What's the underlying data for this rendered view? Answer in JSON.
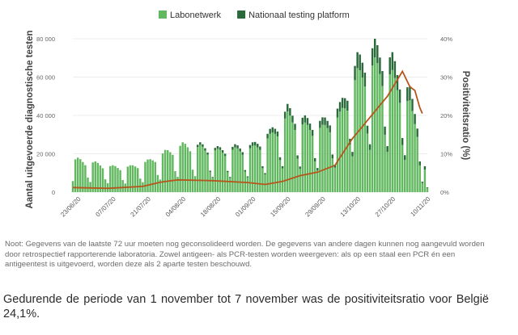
{
  "chart_data": {
    "type": "bar",
    "legend": [
      {
        "name": "Labonetwerk",
        "color": "#62b860"
      },
      {
        "name": "Nationaal testing platform",
        "color": "#2a6a3a"
      }
    ],
    "line_series": {
      "name": "Positiviteitsratio",
      "color": "#b5561c"
    },
    "ylabel": "Aantal uitgevoerde diagnostische testen",
    "y2label": "Positiviteitsratio (%)",
    "ylim": [
      0,
      80000
    ],
    "y_ticks": [
      0,
      20000,
      40000,
      60000,
      80000
    ],
    "y_tick_labels": [
      "0",
      "20 000",
      "40 000",
      "60 000",
      "80 000"
    ],
    "y2lim": [
      0,
      40
    ],
    "y2_ticks": [
      0,
      10,
      20,
      30,
      40
    ],
    "y2_tick_labels": [
      "0%",
      "10%",
      "20%",
      "30%",
      "40%"
    ],
    "x_tick_labels": [
      "23/06/20",
      "07/07/20",
      "21/07/20",
      "04/08/20",
      "18/08/20",
      "01/09/20",
      "15/09/20",
      "29/09/20",
      "13/10/20",
      "27/10/20",
      "10/11/20"
    ],
    "x_start": "2020-06-21",
    "x_end": "2020-11-10",
    "weekly_peaks": [
      {
        "date": "2020-06-23",
        "total": 18000
      },
      {
        "date": "2020-06-30",
        "total": 16000
      },
      {
        "date": "2020-07-07",
        "total": 14000
      },
      {
        "date": "2020-07-14",
        "total": 14000
      },
      {
        "date": "2020-07-21",
        "total": 17000
      },
      {
        "date": "2020-07-28",
        "total": 22000
      },
      {
        "date": "2020-08-04",
        "total": 26000
      },
      {
        "date": "2020-08-11",
        "total": 26000
      },
      {
        "date": "2020-08-18",
        "total": 24000
      },
      {
        "date": "2020-08-25",
        "total": 25000
      },
      {
        "date": "2020-09-01",
        "total": 26000
      },
      {
        "date": "2020-09-08",
        "total": 33000
      },
      {
        "date": "2020-09-15",
        "total": 46000
      },
      {
        "date": "2020-09-22",
        "total": 40000
      },
      {
        "date": "2020-09-29",
        "total": 39000
      },
      {
        "date": "2020-10-06",
        "total": 47000
      },
      {
        "date": "2020-10-13",
        "total": 73000
      },
      {
        "date": "2020-10-20",
        "total": 80000
      },
      {
        "date": "2020-10-27",
        "total": 73000
      },
      {
        "date": "2020-11-03",
        "total": 55000
      },
      {
        "date": "2020-11-10",
        "total": 21000
      }
    ],
    "positivity": [
      {
        "date": "2020-06-21",
        "value": 1.2
      },
      {
        "date": "2020-07-05",
        "value": 1.0
      },
      {
        "date": "2020-07-19",
        "value": 1.5
      },
      {
        "date": "2020-07-26",
        "value": 2.6
      },
      {
        "date": "2020-08-02",
        "value": 3.2
      },
      {
        "date": "2020-08-16",
        "value": 3.0
      },
      {
        "date": "2020-08-30",
        "value": 2.5
      },
      {
        "date": "2020-09-06",
        "value": 2.0
      },
      {
        "date": "2020-09-13",
        "value": 2.8
      },
      {
        "date": "2020-09-20",
        "value": 4.3
      },
      {
        "date": "2020-09-27",
        "value": 5.2
      },
      {
        "date": "2020-10-04",
        "value": 7.0
      },
      {
        "date": "2020-10-11",
        "value": 14.0
      },
      {
        "date": "2020-10-18",
        "value": 19.5
      },
      {
        "date": "2020-10-25",
        "value": 25.0
      },
      {
        "date": "2020-10-31",
        "value": 31.5
      },
      {
        "date": "2020-11-03",
        "value": 27.5
      },
      {
        "date": "2020-11-05",
        "value": 26.5
      },
      {
        "date": "2020-11-07",
        "value": 22.0
      },
      {
        "date": "2020-11-08",
        "value": 20.5
      }
    ],
    "grid": true
  },
  "note": "Noot: Gegevens van de laatste 72 uur moeten nog geconsolideerd worden. De gegevens van andere dagen kunnen nog aangevuld worden door retrospectief rapporterende laboratoria. Zowel antigeen- als PCR-testen worden weergeven: als op een staal een PCR én een antigeentest is uitgevoerd, worden deze als 2 aparte testen beschouwd.",
  "caption": "Gedurende de periode van 1 november tot 7 november was de positiviteitsratio voor België 24,1%."
}
